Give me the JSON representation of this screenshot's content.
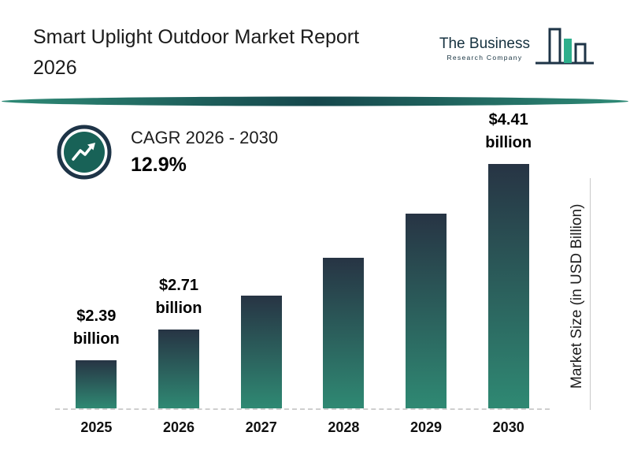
{
  "header": {
    "title_line1": "Smart Uplight Outdoor Market Report",
    "title_line2": "2026",
    "logo": {
      "line1": "The Business",
      "line2": "Research Company",
      "icon": "bar-chart-logo-icon"
    }
  },
  "cagr": {
    "label": "CAGR 2026 - 2030",
    "value": "12.9%",
    "icon": "growth-trend-arrow-icon"
  },
  "chart_data": {
    "type": "bar",
    "title": "Smart Uplight Outdoor Market Report 2026",
    "categories": [
      "2025",
      "2026",
      "2027",
      "2028",
      "2029",
      "2030"
    ],
    "values": [
      2.39,
      2.71,
      3.06,
      3.45,
      3.9,
      4.41
    ],
    "bar_labels": [
      [
        "$2.39",
        "billion"
      ],
      [
        "$2.71",
        "billion"
      ],
      null,
      null,
      null,
      [
        "$4.41",
        "billion"
      ]
    ],
    "xlabel": "",
    "ylabel": "Market Size (in USD Billion)",
    "ylim": [
      1.9,
      4.41
    ],
    "grid": false,
    "legend": false,
    "baseline_style": "dashed",
    "bar_gradient_top": "#273444",
    "bar_gradient_bottom": "#2F8973"
  },
  "colors": {
    "navy": "#1E3447",
    "teal_circle": "#186257",
    "logo_green": "#2EAF8C",
    "divider_teal": "#1A5C55"
  }
}
